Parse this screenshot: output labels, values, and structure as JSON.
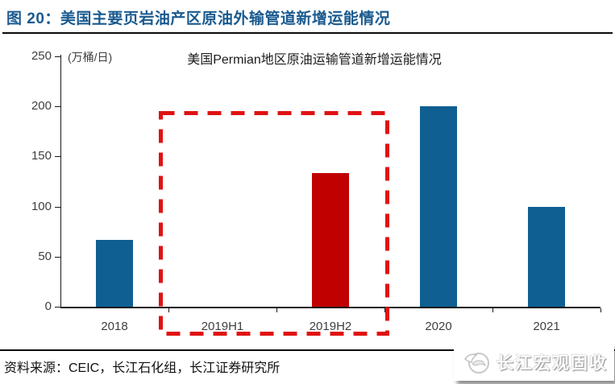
{
  "header": {
    "title": "图 20：美国主要页岩油产区原油外输管道新增运能情况"
  },
  "chart_data": {
    "type": "bar",
    "title": "美国Permian地区原油运输管道新增运能情况",
    "unit_label": "(万桶/日)",
    "categories": [
      "2018",
      "2019H1",
      "2019H2",
      "2020",
      "2021"
    ],
    "values": [
      67,
      0,
      133,
      200,
      100
    ],
    "bar_colors": [
      "#0F5F92",
      "#0F5F92",
      "#C00000",
      "#0F5F92",
      "#0F5F92"
    ],
    "y_ticks": [
      0,
      50,
      100,
      150,
      200,
      250
    ],
    "ylim": [
      0,
      250
    ],
    "grid": "off",
    "legend": "none",
    "highlight": {
      "style": "red-dashed-box",
      "color": "#E01212",
      "categories": [
        "2019H1",
        "2019H2"
      ]
    }
  },
  "footer": {
    "source": "资料来源：CEIC，长江石化组，长江证券研究所"
  },
  "watermark": {
    "text": "长江宏观固收",
    "icon": "changjiang-logo-icon"
  },
  "colors": {
    "figure_title": "#1A5A8F",
    "bar_blue": "#0F5F92",
    "bar_red": "#C00000",
    "dash_red": "#E01212",
    "axis_text": "#3F3F3F",
    "rule": "#0A0A0A"
  }
}
